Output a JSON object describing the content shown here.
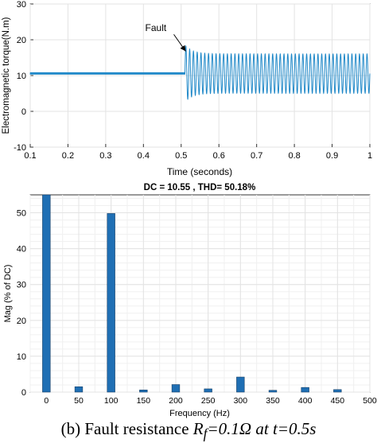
{
  "colors": {
    "signal": "#1f88c8",
    "bar": "#1f6fb4",
    "bar_edge": "#163f66",
    "grid": "#e3e3e3",
    "axis": "#333333"
  },
  "chart_data": [
    {
      "type": "line",
      "title": "",
      "xlabel": "Time (seconds)",
      "ylabel": "Electromagnetic torque(N.m)",
      "xlim": [
        0.1,
        1.0
      ],
      "ylim": [
        -10,
        30
      ],
      "xticks": [
        "0.1",
        "0.2",
        "0.3",
        "0.4",
        "0.5",
        "0.6",
        "0.7",
        "0.8",
        "0.9",
        "1"
      ],
      "yticks": [
        "-10",
        "0",
        "10",
        "20",
        "30"
      ],
      "grid": true,
      "annotation": {
        "text": "Fault",
        "x": 0.51,
        "y": 17
      },
      "series": [
        {
          "pre_fault": {
            "x_start": 0.1,
            "x_end": 0.51,
            "mean": 10.6,
            "ripple": 0.6
          },
          "post_fault": {
            "x_start": 0.51,
            "x_end": 1.0,
            "mean": 10.55,
            "amplitude": 5.5,
            "first_peak": 18.5,
            "first_trough": 2.5,
            "frequency_hz": 100
          }
        }
      ]
    },
    {
      "type": "bar",
      "title": "DC = 10.55 , THD= 50.18%",
      "xlabel": "Frequency (Hz)",
      "ylabel": "Mag (% of DC)",
      "xlim": [
        -25,
        500
      ],
      "ylim": [
        0,
        55
      ],
      "xticks": [
        "0",
        "50",
        "100",
        "150",
        "200",
        "250",
        "300",
        "350",
        "400",
        "450",
        "500"
      ],
      "yticks": [
        "0",
        "10",
        "20",
        "30",
        "40",
        "50"
      ],
      "grid": true,
      "x": [
        0,
        50,
        100,
        150,
        200,
        250,
        300,
        350,
        400,
        450
      ],
      "values": [
        55,
        1.5,
        49.8,
        0.6,
        2.1,
        0.9,
        4.2,
        0.5,
        1.3,
        0.7
      ]
    }
  ],
  "caption": {
    "prefix": "(b) Fault resistance ",
    "var": "R",
    "sub": "f",
    "eq": "=0.1Ω at ",
    "tvar": "t",
    "tval": "=0.5s"
  }
}
